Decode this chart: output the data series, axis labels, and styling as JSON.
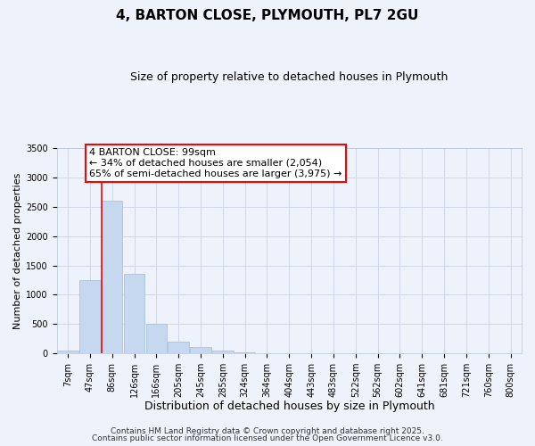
{
  "title": "4, BARTON CLOSE, PLYMOUTH, PL7 2GU",
  "subtitle": "Size of property relative to detached houses in Plymouth",
  "xlabel": "Distribution of detached houses by size in Plymouth",
  "ylabel": "Number of detached properties",
  "bar_labels": [
    "7sqm",
    "47sqm",
    "86sqm",
    "126sqm",
    "166sqm",
    "205sqm",
    "245sqm",
    "285sqm",
    "324sqm",
    "364sqm",
    "404sqm",
    "443sqm",
    "483sqm",
    "522sqm",
    "562sqm",
    "602sqm",
    "641sqm",
    "681sqm",
    "721sqm",
    "760sqm",
    "800sqm"
  ],
  "bar_values": [
    50,
    1250,
    2600,
    1360,
    500,
    200,
    110,
    45,
    20,
    8,
    3,
    1,
    1,
    0,
    0,
    0,
    0,
    0,
    0,
    0,
    0
  ],
  "bar_color": "#c5d8f0",
  "bar_edgecolor": "#a0bcd8",
  "vline_color": "red",
  "vline_position": 1.525,
  "ylim": [
    0,
    3500
  ],
  "annotation_text": "4 BARTON CLOSE: 99sqm\n← 34% of detached houses are smaller (2,054)\n65% of semi-detached houses are larger (3,975) →",
  "annotation_box_edgecolor": "red",
  "annotation_box_facecolor": "white",
  "footnote1": "Contains HM Land Registry data © Crown copyright and database right 2025.",
  "footnote2": "Contains public sector information licensed under the Open Government Licence v3.0.",
  "bg_color": "#eef2fa",
  "title_fontsize": 11,
  "subtitle_fontsize": 9,
  "xlabel_fontsize": 9,
  "ylabel_fontsize": 8,
  "tick_fontsize": 7,
  "annotation_fontsize": 8,
  "footnote_fontsize": 6.5
}
